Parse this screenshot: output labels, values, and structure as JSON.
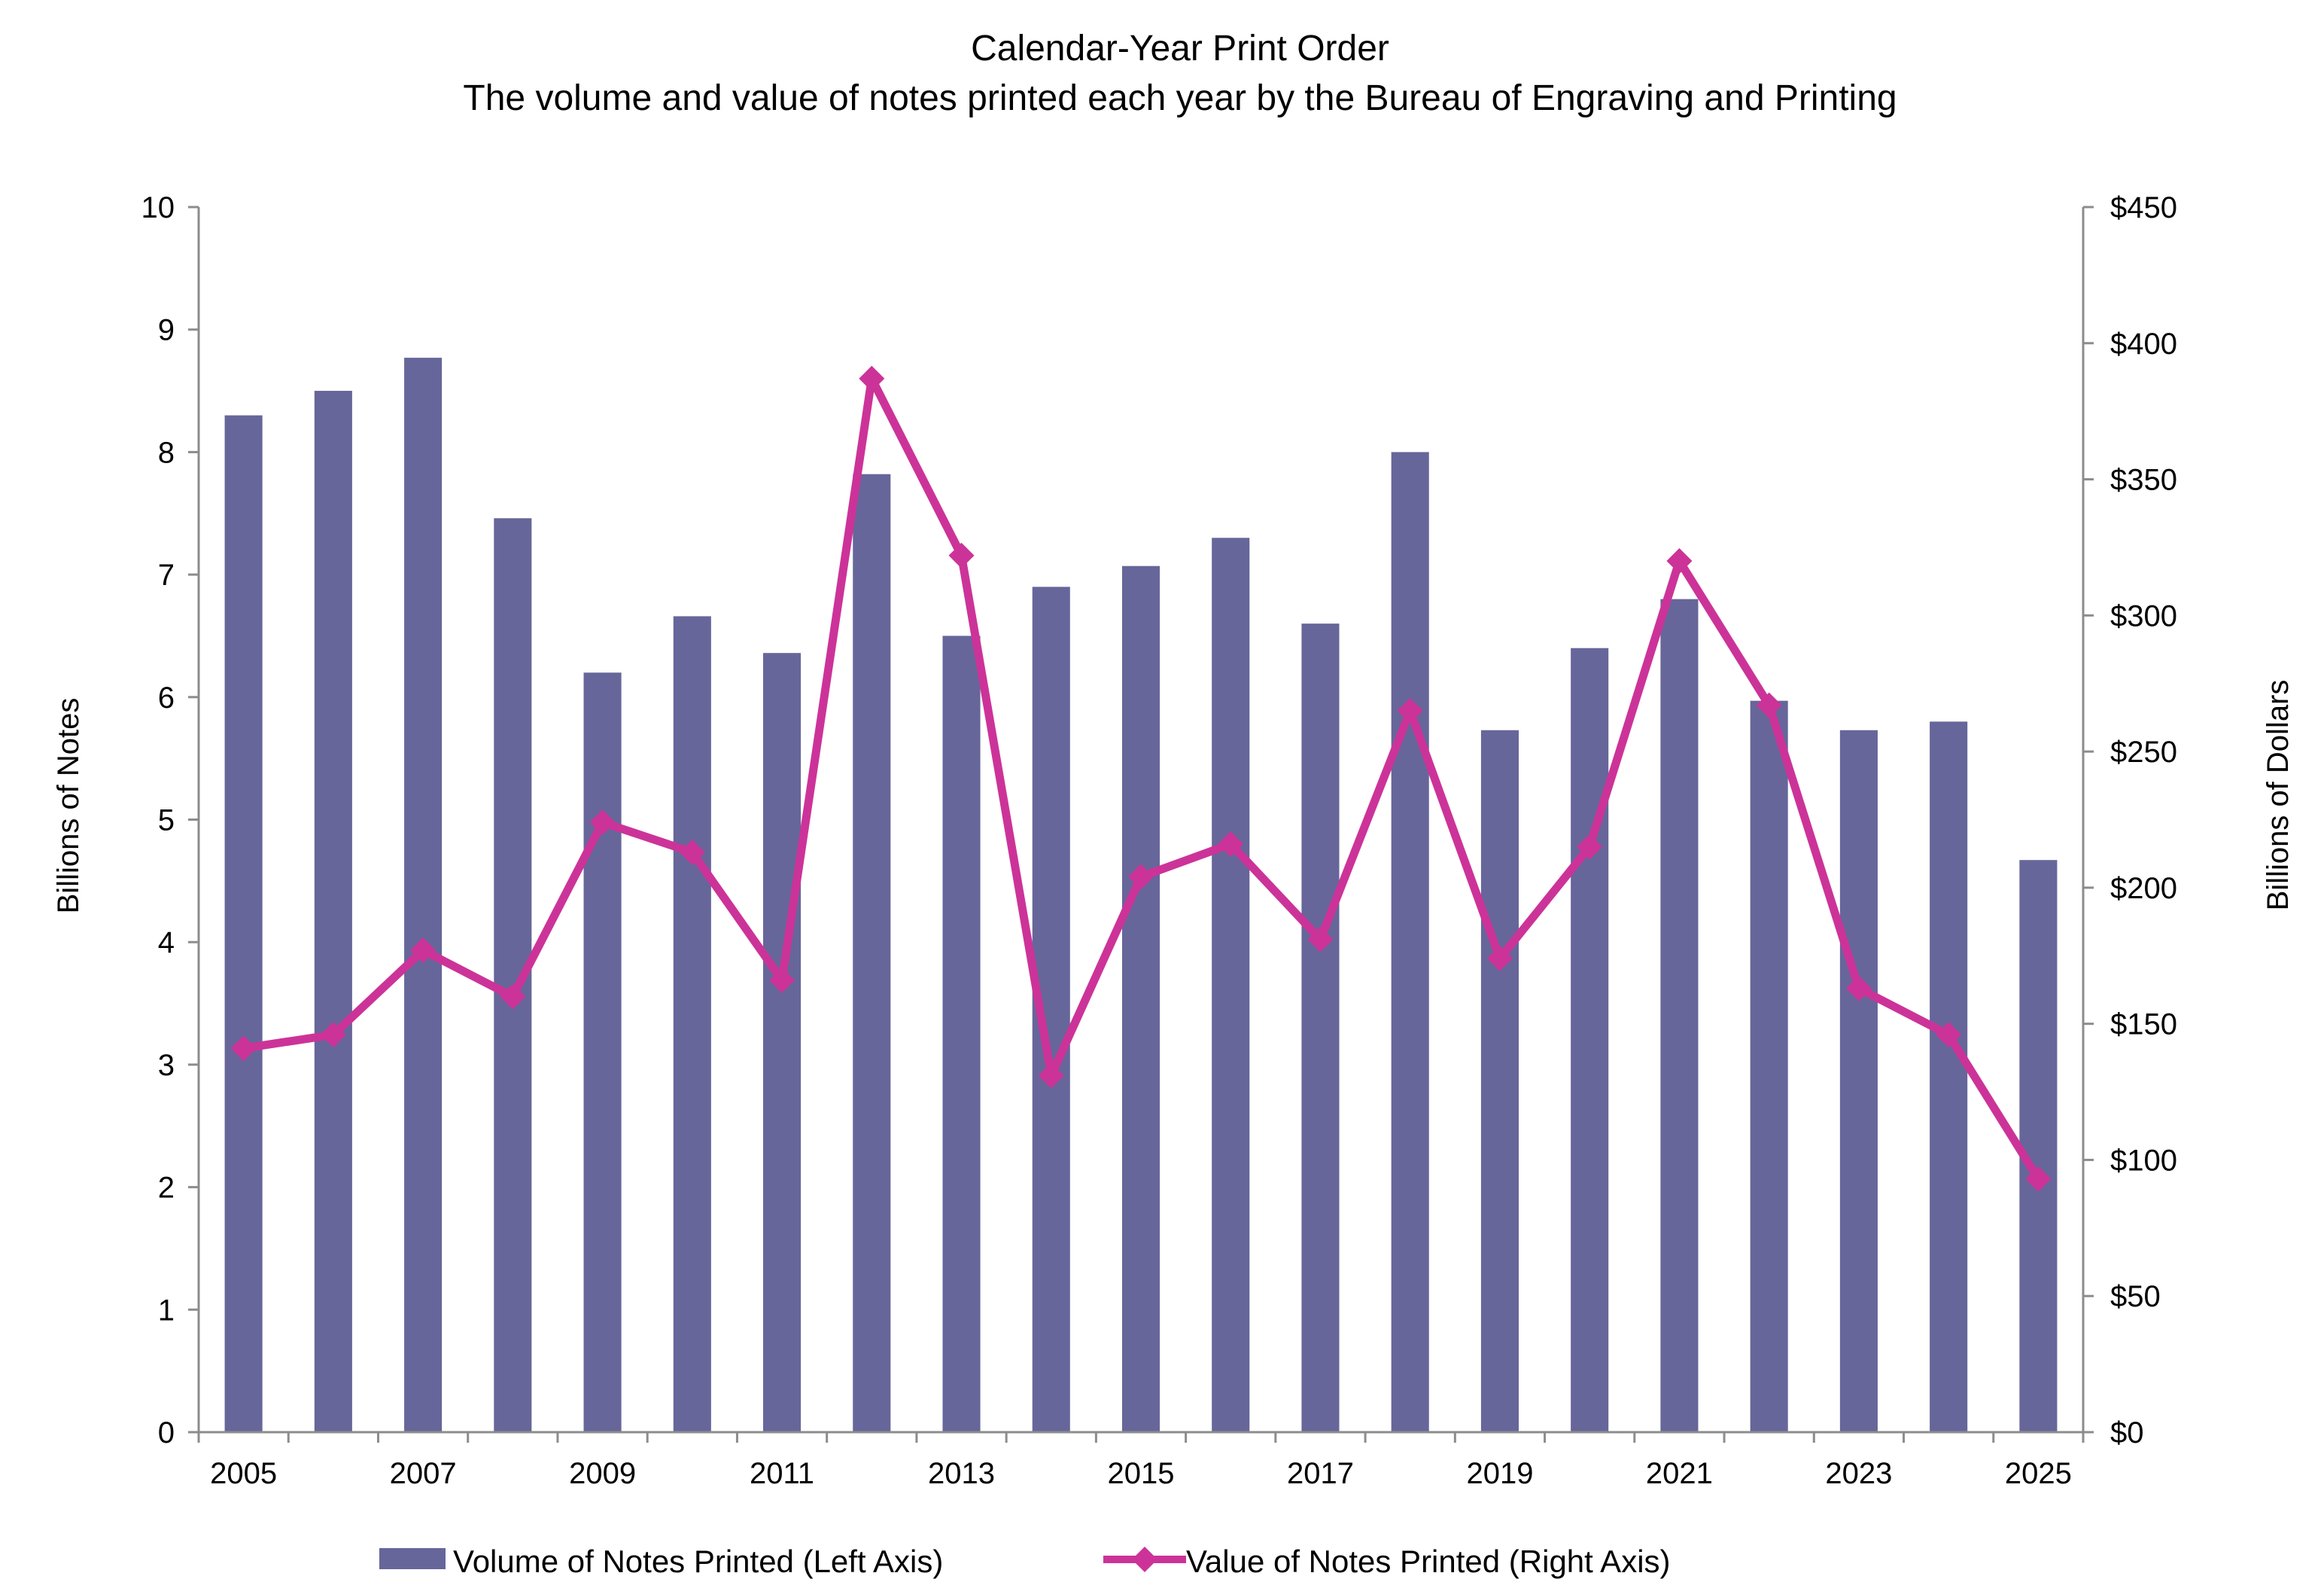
{
  "chart_data": {
    "type": "bar+line",
    "title": "Calendar-Year Print Order",
    "subtitle": "The volume and value of notes printed each year by the Bureau of Engraving and Printing",
    "ylabel_left": "Billions of Notes",
    "ylabel_right": "Billions of Dollars",
    "ylim_left": [
      0,
      10
    ],
    "ylim_right": [
      0,
      450
    ],
    "yticks_left": [
      "0",
      "1",
      "2",
      "3",
      "4",
      "5",
      "6",
      "7",
      "8",
      "9",
      "10"
    ],
    "yticks_right": [
      "$0",
      "$50",
      "$100",
      "$150",
      "$200",
      "$250",
      "$300",
      "$350",
      "$400",
      "$450"
    ],
    "x": [
      "2005",
      "2006",
      "2007",
      "2008",
      "2009",
      "2010",
      "2011",
      "2012",
      "2013",
      "2014",
      "2015",
      "2016",
      "2017",
      "2018",
      "2019",
      "2020",
      "2021",
      "2022",
      "2023",
      "2024",
      "2025"
    ],
    "xtick_labels": [
      "2005",
      "2007",
      "2009",
      "2011",
      "2013",
      "2015",
      "2017",
      "2019",
      "2021",
      "2023",
      "2025"
    ],
    "grid": false,
    "legend_position": "bottom",
    "series": [
      {
        "name": "Volume of Notes Printed (Left Axis)",
        "type": "bar",
        "axis": "left",
        "color": "#66669a",
        "values": [
          8.3,
          8.5,
          8.77,
          7.46,
          6.2,
          6.66,
          6.36,
          7.82,
          6.5,
          6.9,
          7.07,
          7.3,
          6.6,
          8.0,
          5.73,
          6.4,
          6.8,
          5.97,
          5.73,
          5.8,
          4.67
        ]
      },
      {
        "name": "Value of Notes Printed (Right Axis)",
        "type": "line",
        "axis": "right",
        "color": "#cc3399",
        "marker": "diamond",
        "values": [
          141,
          146,
          177,
          160,
          224,
          213,
          166,
          387,
          322,
          131,
          204,
          216,
          181,
          265,
          174,
          215,
          320,
          267,
          163,
          146,
          93
        ]
      }
    ]
  }
}
